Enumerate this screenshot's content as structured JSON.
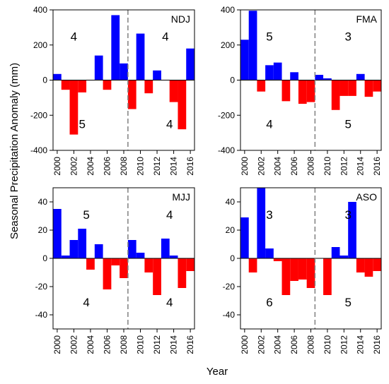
{
  "figure": {
    "ylabel": "Seasonal Precipitation Anomaly (mm)",
    "xlabel": "Year",
    "colors": {
      "positive": "#0000ff",
      "negative": "#ff0000",
      "divider": "#808080"
    }
  },
  "chart_data": [
    {
      "type": "bar",
      "panel": "NDJ",
      "title": "NDJ",
      "title_position": "top-right",
      "x": [
        2000,
        2001,
        2002,
        2003,
        2004,
        2005,
        2006,
        2007,
        2008,
        2009,
        2010,
        2011,
        2012,
        2013,
        2014,
        2015,
        2016
      ],
      "values": [
        35,
        -55,
        -310,
        -70,
        0,
        140,
        -55,
        370,
        95,
        -165,
        265,
        -75,
        55,
        0,
        -125,
        -280,
        180
      ],
      "ylim": [
        -400,
        400
      ],
      "yticks": [
        -400,
        -200,
        0,
        200,
        400
      ],
      "xticks": [
        2000,
        2002,
        2004,
        2006,
        2008,
        2010,
        2012,
        2014,
        2016
      ],
      "divider_x": 2008.5,
      "counts": [
        {
          "text": "4",
          "x": 2002,
          "y": 250
        },
        {
          "text": "4",
          "x": 2013,
          "y": 250
        },
        {
          "text": "5",
          "x": 2003,
          "y": -250
        },
        {
          "text": "4",
          "x": 2013.5,
          "y": -250
        }
      ]
    },
    {
      "type": "bar",
      "panel": "FMA",
      "title": "FMA",
      "title_position": "top-right",
      "x": [
        2000,
        2001,
        2002,
        2003,
        2004,
        2005,
        2006,
        2007,
        2008,
        2009,
        2010,
        2011,
        2012,
        2013,
        2014,
        2015,
        2016
      ],
      "values": [
        230,
        395,
        -65,
        85,
        100,
        -120,
        45,
        -135,
        -125,
        30,
        10,
        -170,
        -90,
        -90,
        35,
        -95,
        -65
      ],
      "ylim": [
        -400,
        400
      ],
      "yticks": [
        -400,
        -200,
        0,
        200,
        400
      ],
      "xticks": [
        2000,
        2002,
        2004,
        2006,
        2008,
        2010,
        2012,
        2014,
        2016
      ],
      "divider_x": 2008.5,
      "counts": [
        {
          "text": "5",
          "x": 2003,
          "y": 250
        },
        {
          "text": "3",
          "x": 2012.5,
          "y": 250
        },
        {
          "text": "4",
          "x": 2003,
          "y": -250
        },
        {
          "text": "5",
          "x": 2012.5,
          "y": -250
        }
      ]
    },
    {
      "type": "bar",
      "panel": "MJJ",
      "title": "MJJ",
      "title_position": "top-right",
      "x": [
        2000,
        2001,
        2002,
        2003,
        2004,
        2005,
        2006,
        2007,
        2008,
        2009,
        2010,
        2011,
        2012,
        2013,
        2014,
        2015,
        2016
      ],
      "values": [
        35,
        2,
        13,
        21,
        -8,
        10,
        -22,
        -5,
        -14,
        13,
        4,
        -10,
        -26,
        14,
        2,
        -21,
        -9
      ],
      "ylim": [
        -50,
        50
      ],
      "yticks": [
        -40,
        -20,
        0,
        20,
        40
      ],
      "xticks": [
        2000,
        2002,
        2004,
        2006,
        2008,
        2010,
        2012,
        2014,
        2016
      ],
      "divider_x": 2008.5,
      "counts": [
        {
          "text": "5",
          "x": 2003.5,
          "y": 31
        },
        {
          "text": "4",
          "x": 2013.5,
          "y": 31
        },
        {
          "text": "4",
          "x": 2003.5,
          "y": -31
        },
        {
          "text": "4",
          "x": 2013.5,
          "y": -31
        }
      ]
    },
    {
      "type": "bar",
      "panel": "ASO",
      "title": "ASO",
      "title_position": "top-right",
      "x": [
        2000,
        2001,
        2002,
        2003,
        2004,
        2005,
        2006,
        2007,
        2008,
        2009,
        2010,
        2011,
        2012,
        2013,
        2014,
        2015,
        2016
      ],
      "values": [
        29,
        -10,
        50,
        7,
        -2,
        -26,
        -16,
        -15,
        -21,
        0,
        -26,
        8,
        2,
        40,
        -10,
        -13,
        -9
      ],
      "ylim": [
        -50,
        50
      ],
      "yticks": [
        -40,
        -20,
        0,
        20,
        40
      ],
      "xticks": [
        2000,
        2002,
        2004,
        2006,
        2008,
        2010,
        2012,
        2014,
        2016
      ],
      "divider_x": 2008.5,
      "counts": [
        {
          "text": "3",
          "x": 2003,
          "y": 31
        },
        {
          "text": "3",
          "x": 2012.5,
          "y": 31
        },
        {
          "text": "6",
          "x": 2003,
          "y": -31
        },
        {
          "text": "5",
          "x": 2012.5,
          "y": -31
        }
      ]
    }
  ]
}
